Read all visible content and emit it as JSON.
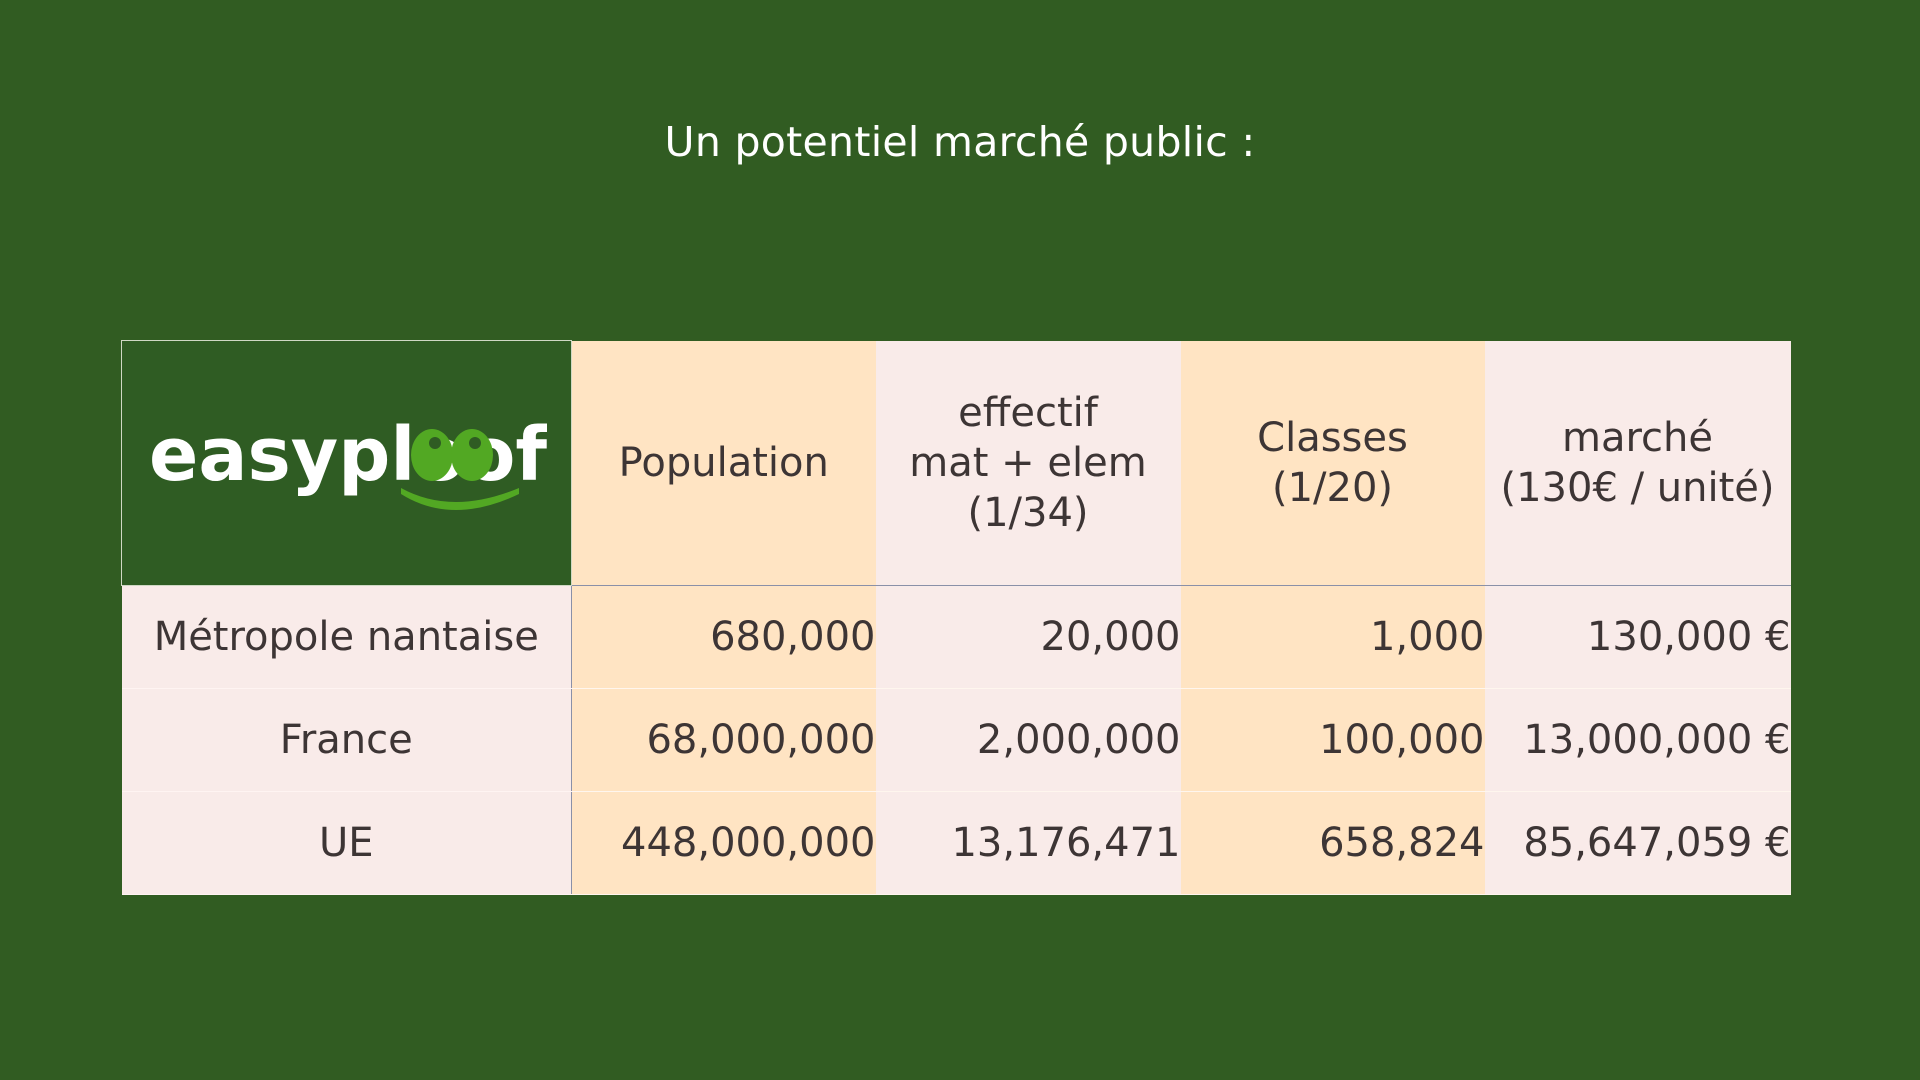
{
  "slide": {
    "title": "Un potentiel marché public :"
  },
  "logo": {
    "text": "easyploof",
    "icon": "frog-eyes-logo",
    "colors": {
      "text": "#ffffff",
      "accent": "#52a823",
      "background": "#2f5c23"
    }
  },
  "table": {
    "headers": [
      "Population",
      "effectif\nmat + elem\n(1/34)",
      "Classes\n(1/20)",
      "marché\n(130€ / unité)"
    ],
    "rows": [
      {
        "label": "Métropole nantaise",
        "cells": [
          "680,000",
          "20,000",
          "1,000",
          "130,000 €"
        ]
      },
      {
        "label": "France",
        "cells": [
          "68,000,000",
          "2,000,000",
          "100,000",
          "13,000,000 €"
        ]
      },
      {
        "label": "UE",
        "cells": [
          "448,000,000",
          "13,176,471",
          "658,824",
          "85,647,059 €"
        ]
      }
    ]
  },
  "colors": {
    "background": "#315c22",
    "peach": "#ffe4c3",
    "pink": "#f9ebe9",
    "text": "#3d3535"
  }
}
